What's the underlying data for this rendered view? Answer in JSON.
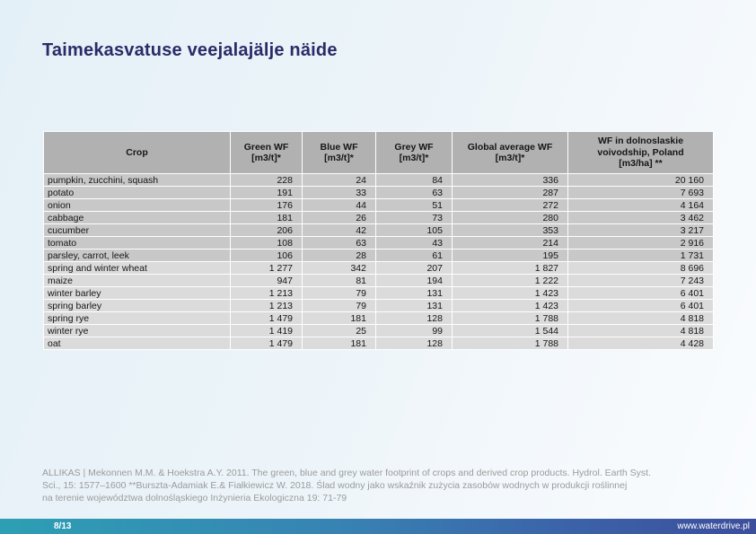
{
  "slide": {
    "title": "Taimekasvatuse veejalajälje näide",
    "page": "8/13",
    "website": "www.waterdrive.pl"
  },
  "table": {
    "columns": [
      "Crop",
      "Green WF\n[m3/t]*",
      "Blue WF\n[m3/t]*",
      "Grey WF\n[m3/t]*",
      "Global average WF\n[m3/t]*",
      "WF in  dolnoslaskie\nvoivodship, Poland\n[m3/ha] **"
    ],
    "rows": [
      {
        "crop": "pumpkin, zucchini, squash",
        "values": [
          "228",
          "24",
          "84",
          "336",
          "20 160"
        ]
      },
      {
        "crop": "potato",
        "values": [
          "191",
          "33",
          "63",
          "287",
          "7 693"
        ]
      },
      {
        "crop": "onion",
        "values": [
          "176",
          "44",
          "51",
          "272",
          "4 164"
        ]
      },
      {
        "crop": "cabbage",
        "values": [
          "181",
          "26",
          "73",
          "280",
          "3 462"
        ]
      },
      {
        "crop": "cucumber",
        "values": [
          "206",
          "42",
          "105",
          "353",
          "3 217"
        ]
      },
      {
        "crop": "tomato",
        "values": [
          "108",
          "63",
          "43",
          "214",
          "2 916"
        ]
      },
      {
        "crop": "parsley, carrot, leek",
        "values": [
          "106",
          "28",
          "61",
          "195",
          "1 731"
        ]
      },
      {
        "crop": "spring and winter wheat",
        "values": [
          "1 277",
          "342",
          "207",
          "1 827",
          "8 696"
        ]
      },
      {
        "crop": "maize",
        "values": [
          "947",
          "81",
          "194",
          "1 222",
          "7 243"
        ]
      },
      {
        "crop": "winter barley",
        "values": [
          "1 213",
          "79",
          "131",
          "1 423",
          "6 401"
        ]
      },
      {
        "crop": "spring barley",
        "values": [
          "1 213",
          "79",
          "131",
          "1 423",
          "6 401"
        ]
      },
      {
        "crop": "spring rye",
        "values": [
          "1 479",
          "181",
          "128",
          "1 788",
          "4 818"
        ]
      },
      {
        "crop": "winter rye",
        "values": [
          "1 419",
          "25",
          "99",
          "1 544",
          "4 818"
        ]
      },
      {
        "crop": "oat",
        "values": [
          "1 479",
          "181",
          "128",
          "1 788",
          "4 428"
        ]
      }
    ]
  },
  "footer": {
    "lines": [
      "ALLIKAS | Mekonnen M.M. & Hoekstra A.Y. 2011. The green, blue and grey water footprint of crops and derived crop products. Hydrol. Earth Syst.",
      "Sci., 15: 1577–1600 **Burszta-Adamiak E.& Fiałkiewicz W. 2018. Ślad wodny jako wskaźnik zużycia zasobów wodnych w produkcji roślinnej",
      "na terenie województwa dolnośląskiego  Inżynieria Ekologiczna 19: 71-79"
    ]
  },
  "colors": {
    "title": "#2a2b68",
    "header_gray": "#b1b1b1",
    "row_gray_dark": "#c8c8c8",
    "row_gray_light": "#dbdbdb",
    "bar_gradient_start": "#2d9fb4",
    "bar_gradient_end": "#3d4e9c",
    "footer_text": "#9b9b9b"
  }
}
